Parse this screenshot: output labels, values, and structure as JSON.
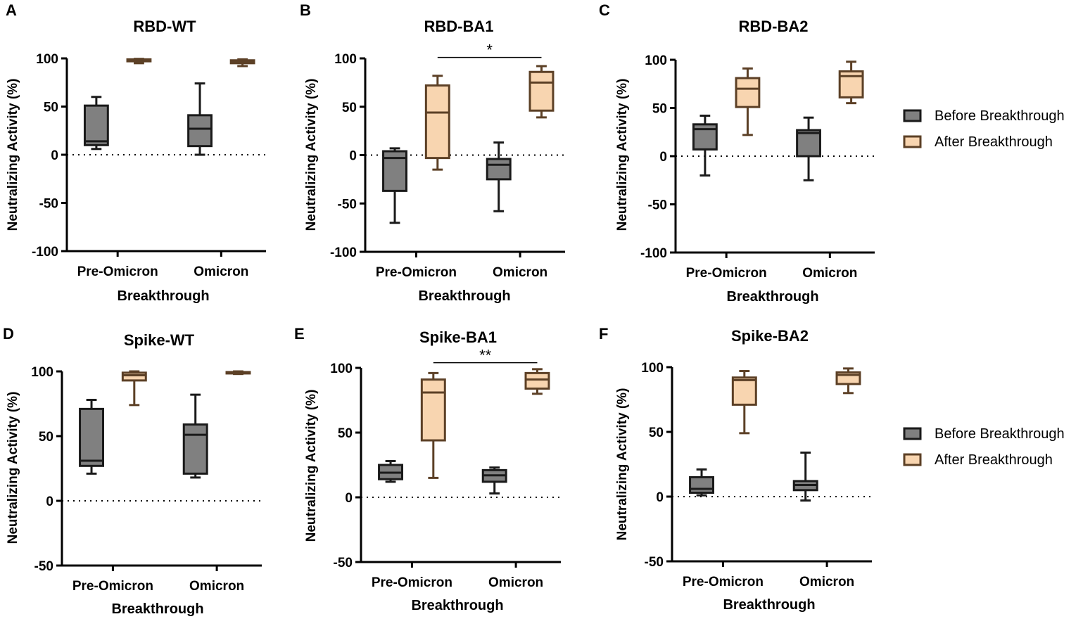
{
  "legend": {
    "before_label": "Before Breakthrough",
    "after_label": "After Breakthrough"
  },
  "colors": {
    "before_fill": "#808080",
    "before_stroke": "#1a1a1a",
    "after_fill": "#f8d5b0",
    "after_stroke": "#5c4026",
    "axis": "#000000"
  },
  "chart_data": [
    {
      "panel": "A",
      "title": "RBD-WT",
      "type": "box",
      "xlabel": "Breakthrough",
      "ylabel": "Neutralizing Activity (%)",
      "ylim": [
        -100,
        100
      ],
      "yticks": [
        -100,
        -50,
        0,
        50,
        100
      ],
      "ytick_labels": [
        "-100",
        "-50",
        "0",
        "50",
        "100"
      ],
      "categories": [
        "Pre-Omicron",
        "Omicron"
      ],
      "series": [
        {
          "name": "Before Breakthrough",
          "boxes": [
            {
              "category": "Pre-Omicron",
              "min": 6,
              "q1": 10,
              "median": 14,
              "q3": 51,
              "max": 60
            },
            {
              "category": "Omicron",
              "min": 0,
              "q1": 9,
              "median": 27,
              "q3": 41,
              "max": 74
            }
          ]
        },
        {
          "name": "After Breakthrough",
          "boxes": [
            {
              "category": "Pre-Omicron",
              "min": 95,
              "q1": 97,
              "median": 98.5,
              "q3": 99,
              "max": 99.5
            },
            {
              "category": "Omicron",
              "min": 92,
              "q1": 95,
              "median": 97,
              "q3": 98,
              "max": 99
            }
          ]
        }
      ],
      "significance": []
    },
    {
      "panel": "B",
      "title": "RBD-BA1",
      "type": "box",
      "xlabel": "Breakthrough",
      "ylabel": "Neutralizing Activity (%)",
      "ylim": [
        -100,
        100
      ],
      "yticks": [
        -100,
        -50,
        0,
        50,
        100
      ],
      "ytick_labels": [
        "-100",
        "-50",
        "0",
        "50",
        "100"
      ],
      "categories": [
        "Pre-Omicron",
        "Omicron"
      ],
      "series": [
        {
          "name": "Before Breakthrough",
          "boxes": [
            {
              "category": "Pre-Omicron",
              "min": -70,
              "q1": -37,
              "median": -3,
              "q3": 4,
              "max": 7
            },
            {
              "category": "Omicron",
              "min": -58,
              "q1": -25,
              "median": -10,
              "q3": -4,
              "max": 13
            }
          ]
        },
        {
          "name": "After Breakthrough",
          "boxes": [
            {
              "category": "Pre-Omicron",
              "min": -15,
              "q1": -3,
              "median": 44,
              "q3": 72,
              "max": 82
            },
            {
              "category": "Omicron",
              "min": 39,
              "q1": 46,
              "median": 75,
              "q3": 86,
              "max": 92
            }
          ]
        }
      ],
      "significance": [
        {
          "label": "*",
          "from": "Pre-Omicron",
          "to": "Omicron",
          "value": 101
        }
      ]
    },
    {
      "panel": "C",
      "title": "RBD-BA2",
      "type": "box",
      "xlabel": "Breakthrough",
      "ylabel": "Neutralizing Activity (%)",
      "ylim": [
        -100,
        100
      ],
      "yticks": [
        -100,
        -50,
        0,
        50,
        100
      ],
      "ytick_labels": [
        "-100",
        "-50",
        "0",
        "50",
        "100"
      ],
      "categories": [
        "Pre-Omicron",
        "Omicron"
      ],
      "series": [
        {
          "name": "Before Breakthrough",
          "boxes": [
            {
              "category": "Pre-Omicron",
              "min": -20,
              "q1": 7,
              "median": 28,
              "q3": 33,
              "max": 42
            },
            {
              "category": "Omicron",
              "min": -25,
              "q1": 0,
              "median": 24,
              "q3": 27,
              "max": 40
            }
          ]
        },
        {
          "name": "After Breakthrough",
          "boxes": [
            {
              "category": "Pre-Omicron",
              "min": 22,
              "q1": 51,
              "median": 70,
              "q3": 81,
              "max": 91
            },
            {
              "category": "Omicron",
              "min": 55,
              "q1": 61,
              "median": 83,
              "q3": 88,
              "max": 98
            }
          ]
        }
      ],
      "significance": []
    },
    {
      "panel": "D",
      "title": "Spike-WT",
      "type": "box",
      "xlabel": "Breakthrough",
      "ylabel": "Neutralizing Activity (%)",
      "ylim": [
        -50,
        100
      ],
      "yticks": [
        -50,
        0,
        50,
        100
      ],
      "ytick_labels": [
        "-50",
        "0",
        "50",
        "100"
      ],
      "categories": [
        "Pre-Omicron",
        "Omicron"
      ],
      "series": [
        {
          "name": "Before Breakthrough",
          "boxes": [
            {
              "category": "Pre-Omicron",
              "min": 21,
              "q1": 27,
              "median": 31,
              "q3": 71,
              "max": 78
            },
            {
              "category": "Omicron",
              "min": 18,
              "q1": 21,
              "median": 51,
              "q3": 59,
              "max": 82
            }
          ]
        },
        {
          "name": "After Breakthrough",
          "boxes": [
            {
              "category": "Pre-Omicron",
              "min": 74,
              "q1": 93,
              "median": 97,
              "q3": 99,
              "max": 100
            },
            {
              "category": "Omicron",
              "min": 98,
              "q1": 98.5,
              "median": 99,
              "q3": 99.5,
              "max": 100
            }
          ]
        }
      ],
      "significance": []
    },
    {
      "panel": "E",
      "title": "Spike-BA1",
      "type": "box",
      "xlabel": "Breakthrough",
      "ylabel": "Neutralizing Activity (%)",
      "ylim": [
        -50,
        100
      ],
      "yticks": [
        -50,
        0,
        50,
        100
      ],
      "ytick_labels": [
        "-50",
        "0",
        "50",
        "100"
      ],
      "categories": [
        "Pre-Omicron",
        "Omicron"
      ],
      "series": [
        {
          "name": "Before Breakthrough",
          "boxes": [
            {
              "category": "Pre-Omicron",
              "min": 12,
              "q1": 14,
              "median": 19,
              "q3": 25,
              "max": 28
            },
            {
              "category": "Omicron",
              "min": 3,
              "q1": 12,
              "median": 17,
              "q3": 21,
              "max": 23
            }
          ]
        },
        {
          "name": "After Breakthrough",
          "boxes": [
            {
              "category": "Pre-Omicron",
              "min": 15,
              "q1": 44,
              "median": 81,
              "q3": 91,
              "max": 96
            },
            {
              "category": "Omicron",
              "min": 80,
              "q1": 84,
              "median": 91,
              "q3": 96,
              "max": 99
            }
          ]
        }
      ],
      "significance": [
        {
          "label": "**",
          "from": "Pre-Omicron",
          "to": "Omicron",
          "value": 104
        }
      ]
    },
    {
      "panel": "F",
      "title": "Spike-BA2",
      "type": "box",
      "xlabel": "Breakthrough",
      "ylabel": "Neutralizing Activity (%)",
      "ylim": [
        -50,
        100
      ],
      "yticks": [
        -50,
        0,
        50,
        100
      ],
      "ytick_labels": [
        "-50",
        "0",
        "50",
        "100"
      ],
      "categories": [
        "Pre-Omicron",
        "Omicron"
      ],
      "series": [
        {
          "name": "Before Breakthrough",
          "boxes": [
            {
              "category": "Pre-Omicron",
              "min": 1,
              "q1": 3,
              "median": 6,
              "q3": 15,
              "max": 21
            },
            {
              "category": "Omicron",
              "min": -3,
              "q1": 5,
              "median": 9,
              "q3": 12,
              "max": 34
            }
          ]
        },
        {
          "name": "After Breakthrough",
          "boxes": [
            {
              "category": "Pre-Omicron",
              "min": 49,
              "q1": 71,
              "median": 90,
              "q3": 92,
              "max": 97
            },
            {
              "category": "Omicron",
              "min": 80,
              "q1": 87,
              "median": 94,
              "q3": 96,
              "max": 99
            }
          ]
        }
      ],
      "significance": []
    }
  ]
}
